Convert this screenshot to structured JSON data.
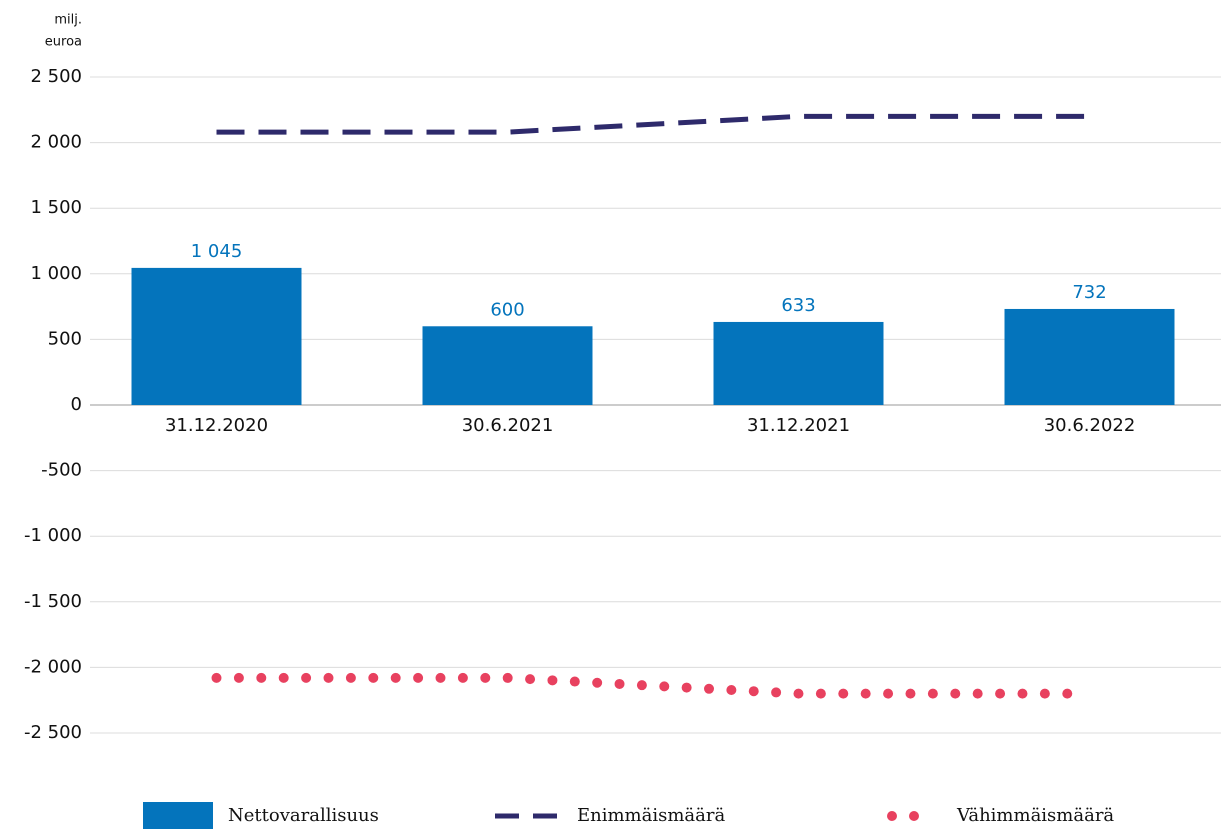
{
  "chart_data": {
    "type": "bar",
    "y_label": [
      "milj.",
      "euroa"
    ],
    "categories": [
      "31.12.2020",
      "30.6.2021",
      "31.12.2021",
      "30.6.2022"
    ],
    "series": [
      {
        "name": "Nettovarallisuus",
        "type": "bar",
        "color": "#0474bc",
        "values": [
          1045,
          600,
          633,
          732
        ],
        "value_labels": [
          "1 045",
          "600",
          "633",
          "732"
        ]
      },
      {
        "name": "Enimmäismäärä",
        "type": "dashed-line",
        "color": "#2e2a6b",
        "values": [
          2080,
          2080,
          2200,
          2200
        ]
      },
      {
        "name": "Vähimmäismäärä",
        "type": "dotted-line",
        "color": "#e8415f",
        "values": [
          -2080,
          -2080,
          -2200,
          -2200
        ]
      }
    ],
    "ylim": [
      -2500,
      2500
    ],
    "yticks": [
      {
        "value": 2500,
        "label": "2 500"
      },
      {
        "value": 2000,
        "label": "2 000"
      },
      {
        "value": 1500,
        "label": "1 500"
      },
      {
        "value": 1000,
        "label": "1 000"
      },
      500,
      0,
      -500,
      {
        "value": -1000,
        "label": "-1 000"
      },
      {
        "value": -1500,
        "label": "-1 500"
      },
      {
        "value": -2000,
        "label": "-2 000"
      },
      {
        "value": -2500,
        "label": "-2 500"
      }
    ],
    "grid": true,
    "legend": "bottom"
  }
}
